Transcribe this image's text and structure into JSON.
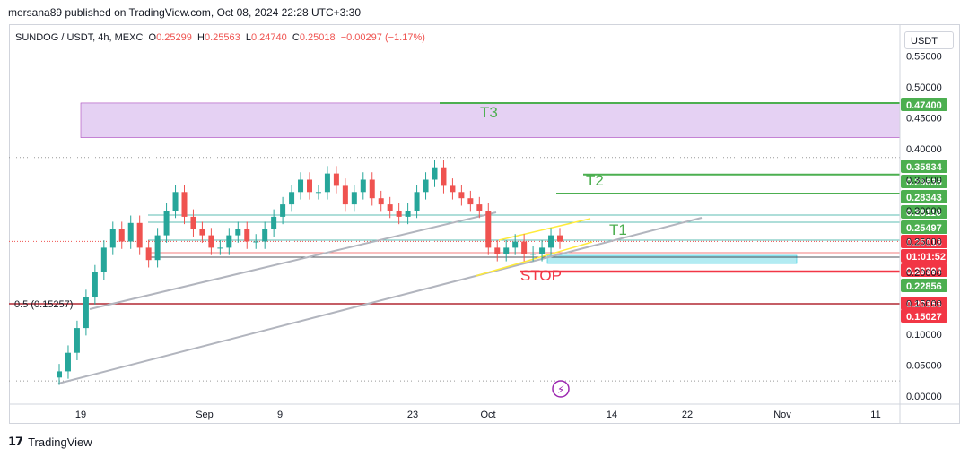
{
  "header": {
    "published": "mersana89 published on TradingView.com, Oct 08, 2024 22:28 UTC+3:30"
  },
  "symbol": {
    "pair": "SUNDOG / USDT, 4h, MEXC",
    "o_label": "O",
    "o": "0.25299",
    "h_label": "H",
    "h": "0.25563",
    "l_label": "L",
    "l": "0.24740",
    "c_label": "C",
    "c": "0.25018",
    "change": "−0.00297 (−1.17%)"
  },
  "currency": "USDT",
  "colors": {
    "bull": "#26a69a",
    "bear": "#ef5350",
    "target_green": "#4caf50",
    "stop_red": "#f23645",
    "zone_purple": "#e1c9f2",
    "channel_yellow": "#ffeb3b",
    "trend_gray": "#b2b5be"
  },
  "labels": {
    "t3": "T3",
    "t2": "T2",
    "t1": "T1",
    "stop": "STOP",
    "fib": "0.5 (0.15257)"
  },
  "footer": {
    "brand": "TradingView"
  },
  "chart_data": {
    "type": "candlestick",
    "y_ticks": [
      "0.55000",
      "0.50000",
      "0.45000",
      "0.40000",
      "0.35000",
      "0.30000",
      "0.25000",
      "0.20000",
      "0.15000",
      "0.10000",
      "0.05000",
      "0.00000"
    ],
    "x_ticks": [
      "19",
      "Sep",
      "9",
      "23",
      "Oct",
      "14",
      "22",
      "Nov",
      "11"
    ],
    "price_tags": [
      {
        "value": "0.47400",
        "kind": "green"
      },
      {
        "value": "0.35834",
        "kind": "green"
      },
      {
        "value": "0.29635",
        "kind": "green"
      },
      {
        "value": "0.28343",
        "kind": "green"
      },
      {
        "value": "0.28110",
        "kind": "green"
      },
      {
        "value": "0.25497",
        "kind": "green"
      },
      {
        "value": "0.25018",
        "kind": "red"
      },
      {
        "value": "01:01:52",
        "kind": "red"
      },
      {
        "value": "0.23394",
        "kind": "red"
      },
      {
        "value": "0.22856",
        "kind": "green"
      },
      {
        "value": "0.20356",
        "kind": "red"
      },
      {
        "value": "0.15027",
        "kind": "red"
      }
    ],
    "levels": {
      "t3": 0.474,
      "t2": 0.35834,
      "t1": 0.2811,
      "stop": 0.23394,
      "fib": 0.15257
    },
    "zone": {
      "from": 0.418,
      "to": 0.474
    },
    "close_sample": [
      0.04,
      0.07,
      0.11,
      0.16,
      0.2,
      0.24,
      0.27,
      0.25,
      0.28,
      0.24,
      0.22,
      0.26,
      0.3,
      0.33,
      0.29,
      0.27,
      0.26,
      0.24,
      0.24,
      0.26,
      0.27,
      0.25,
      0.25,
      0.27,
      0.29,
      0.31,
      0.33,
      0.35,
      0.33,
      0.33,
      0.36,
      0.34,
      0.31,
      0.33,
      0.35,
      0.32,
      0.31,
      0.3,
      0.29,
      0.3,
      0.33,
      0.35,
      0.37,
      0.34,
      0.33,
      0.32,
      0.31,
      0.3,
      0.24,
      0.23,
      0.24,
      0.25,
      0.23,
      0.23,
      0.24,
      0.26,
      0.25
    ]
  }
}
